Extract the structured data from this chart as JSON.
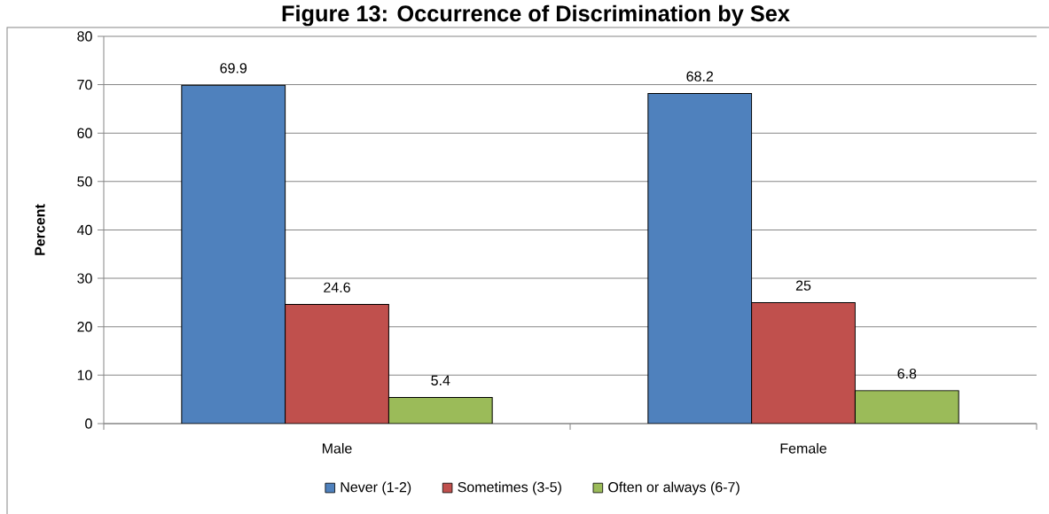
{
  "chart_data": {
    "type": "bar",
    "title": "Figure 13: Occurrence of Discrimination by Sex",
    "ylabel": "Percent",
    "categories": [
      "Male",
      "Female"
    ],
    "series": [
      {
        "name": "Never (1-2)",
        "color": "#4f81bd",
        "values": [
          69.9,
          68.2
        ]
      },
      {
        "name": "Sometimes (3-5)",
        "color": "#c0504d",
        "values": [
          24.6,
          25
        ]
      },
      {
        "name": "Often or always (6-7)",
        "color": "#9bbb59",
        "values": [
          5.4,
          6.8
        ]
      }
    ],
    "ylim": [
      0,
      80
    ],
    "yticks": [
      0,
      10,
      20,
      30,
      40,
      50,
      60,
      70,
      80
    ],
    "grid": "y",
    "legend": "bottom",
    "data_labels": true
  }
}
